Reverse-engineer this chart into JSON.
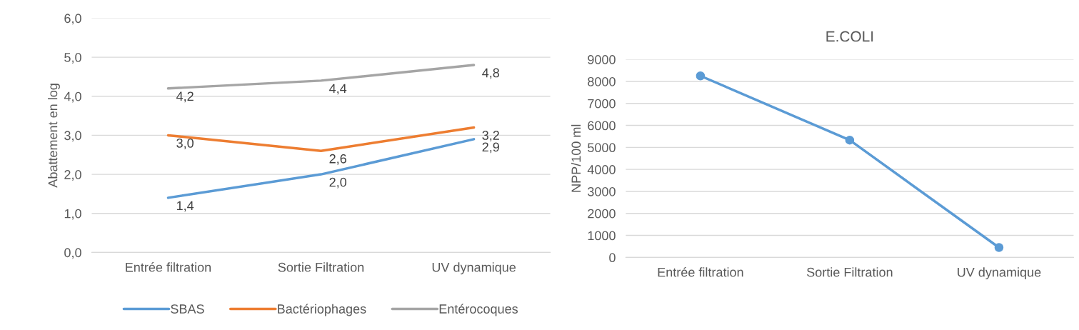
{
  "chart_data": [
    {
      "type": "line",
      "ylabel": "Abattement en log",
      "categories": [
        "Entrée filtration",
        "Sortie Filtration",
        "UV dynamique"
      ],
      "series": [
        {
          "name": "SBAS",
          "color": "#5b9bd5",
          "values": [
            1.4,
            2.0,
            2.9
          ],
          "value_labels": [
            "1,4",
            "2,0",
            "2,9"
          ]
        },
        {
          "name": "Bactériophages",
          "color": "#ed7d31",
          "values": [
            3.0,
            2.6,
            3.2
          ],
          "value_labels": [
            "3,0",
            "2,6",
            "3,2"
          ]
        },
        {
          "name": "Entérocoques",
          "color": "#a5a5a5",
          "values": [
            4.2,
            4.4,
            4.8
          ],
          "value_labels": [
            "4,2",
            "4,4",
            "4,8"
          ]
        }
      ],
      "ylim": [
        0,
        6
      ],
      "yticks": [
        {
          "value": 0,
          "label": "0,0"
        },
        {
          "value": 1,
          "label": "1,0"
        },
        {
          "value": 2,
          "label": "2,0"
        },
        {
          "value": 3,
          "label": "3,0"
        },
        {
          "value": 4,
          "label": "4,0"
        },
        {
          "value": 5,
          "label": "5,0"
        },
        {
          "value": 6,
          "label": "6,0"
        }
      ],
      "grid": "y",
      "legend": "bottom",
      "marker": "none",
      "line_style": "solid"
    },
    {
      "type": "line",
      "title": "E.COLI",
      "ylabel": "NPP/100 ml",
      "categories": [
        "Entrée filtration",
        "Sortie Filtration",
        "UV dynamique"
      ],
      "series": [
        {
          "color": "#5b9bd5",
          "values": [
            8250,
            5330,
            450
          ]
        }
      ],
      "ylim": [
        0,
        9000
      ],
      "yticks": [
        0,
        1000,
        2000,
        3000,
        4000,
        5000,
        6000,
        7000,
        8000,
        9000
      ],
      "grid": "y",
      "marker": "circle",
      "line_style": "solid"
    }
  ]
}
